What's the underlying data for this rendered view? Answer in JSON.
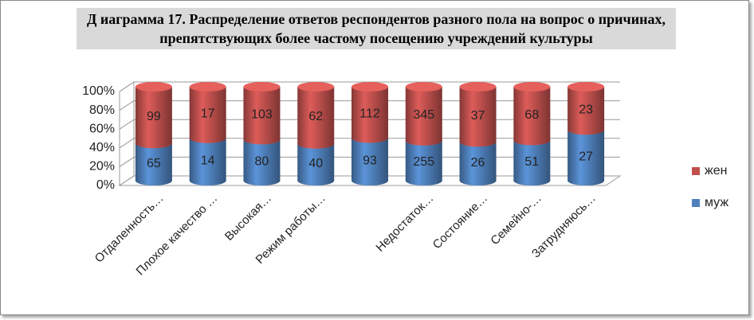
{
  "chart_data": {
    "type": "bar",
    "stack": "percent",
    "title": "Д иаграмма 17. Распределение ответов респондентов разного пола на вопрос о причинах, препятствующих более частому посещению учреждений культуры",
    "categories": [
      "Отдаленность…",
      "Плохое качество …",
      "Высокая…",
      "Режим работы…",
      null,
      "Недостаток…",
      "Состояние…",
      "Семейно-…",
      "Затрудняюсь…"
    ],
    "series": [
      {
        "name": "муж",
        "color": "#4f81bd",
        "values": [
          65,
          14,
          80,
          40,
          93,
          255,
          26,
          51,
          27
        ]
      },
      {
        "name": "жен",
        "color": "#c0504d",
        "values": [
          99,
          17,
          103,
          62,
          112,
          345,
          37,
          68,
          23
        ]
      }
    ],
    "ylim": [
      0,
      100
    ],
    "yticks": [
      {
        "value": 0,
        "label": "0%"
      },
      {
        "value": 20,
        "label": "20%"
      },
      {
        "value": 40,
        "label": "40%"
      },
      {
        "value": 60,
        "label": "60%"
      },
      {
        "value": 80,
        "label": "80%"
      },
      {
        "value": 100,
        "label": "100%"
      }
    ],
    "grid": true,
    "legend": "right"
  }
}
